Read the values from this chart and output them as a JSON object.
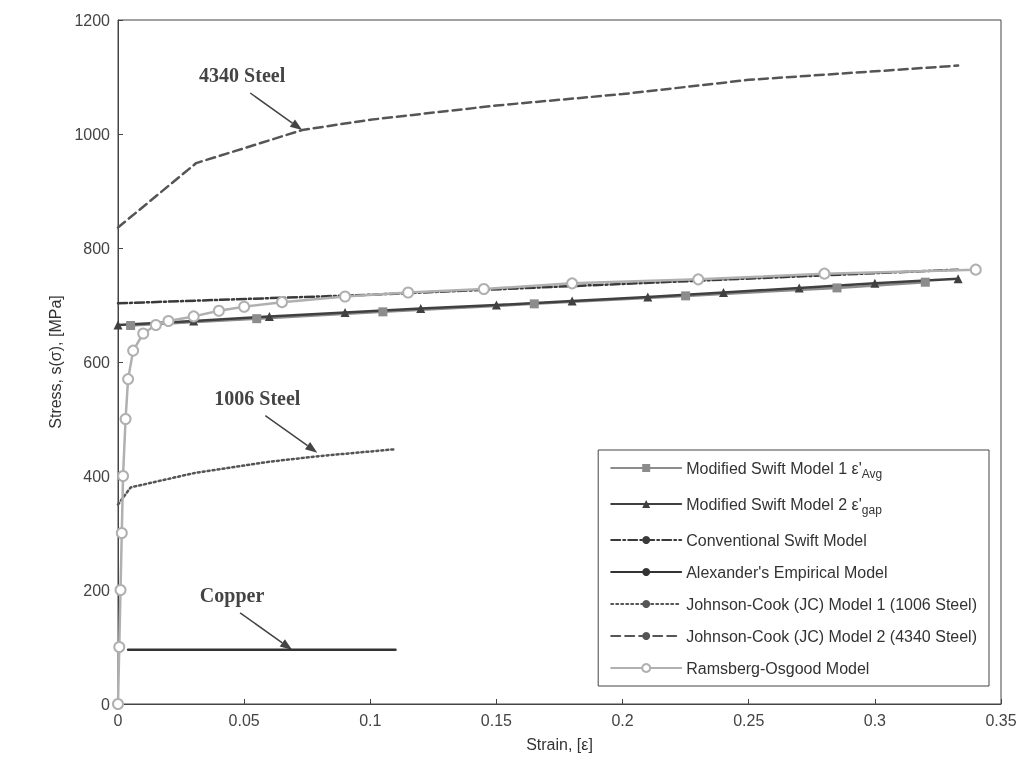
{
  "chart_data": {
    "type": "line",
    "xlabel": "Strain, [ε]",
    "ylabel": "Stress, s(σ), [MPa]",
    "xlim": [
      0,
      0.35
    ],
    "xticks": [
      0,
      0.05,
      0.1,
      0.15,
      0.2,
      0.25,
      0.3,
      0.35
    ],
    "ylim": [
      0,
      1200
    ],
    "yticks": [
      0,
      200,
      400,
      600,
      800,
      1000,
      1200
    ],
    "grid": false,
    "legend": "bottom right",
    "series": [
      {
        "name": "Modified Swift Model 1 ε'$_{Avg}$",
        "color": "#8c8c8c",
        "marker": "square",
        "line_style": "solid",
        "x": [
          0.005,
          0.055,
          0.105,
          0.165,
          0.225,
          0.285,
          0.32
        ],
        "values": [
          664,
          676,
          688,
          702,
          716,
          730,
          740
        ]
      },
      {
        "name": "Modified Swift Model 2 ε'$_{gap}$",
        "color": "#404040",
        "marker": "triangle",
        "line_style": "solid",
        "x": [
          0,
          0.03,
          0.06,
          0.09,
          0.12,
          0.15,
          0.18,
          0.21,
          0.24,
          0.27,
          0.3,
          0.333
        ],
        "values": [
          665,
          672,
          680,
          687,
          694,
          700,
          707,
          714,
          722,
          730,
          738,
          746
        ]
      },
      {
        "name": "Conventional Swift Model",
        "color": "#3a3a3a",
        "marker": "none",
        "line_style": "dashdot",
        "x": [
          0,
          0.1,
          0.2,
          0.333
        ],
        "values": [
          703,
          718,
          737,
          762
        ]
      },
      {
        "name": "Alexander's Empirical Model",
        "color": "#333333",
        "marker": "none",
        "line_style": "solid",
        "x": [
          0.004,
          0.11
        ],
        "values": [
          95,
          95
        ]
      },
      {
        "name": "Johnson-Cook (JC) Model 1 (1006 Steel)",
        "color": "#555555",
        "marker": "none",
        "line_style": "dotted",
        "x": [
          0,
          0.005,
          0.03,
          0.06,
          0.08,
          0.11
        ],
        "values": [
          350,
          380,
          405,
          425,
          435,
          447
        ]
      },
      {
        "name": "Johnson-Cook (JC) Model 2 (4340 Steel)",
        "color": "#555555",
        "marker": "none",
        "line_style": "dashed",
        "x": [
          0,
          0.031,
          0.05,
          0.073,
          0.1,
          0.15,
          0.2,
          0.25,
          0.3,
          0.333
        ],
        "values": [
          836,
          949,
          975,
          1007,
          1025,
          1050,
          1070,
          1095,
          1110,
          1120
        ]
      },
      {
        "name": "Ramsberg-Osgood Model",
        "color": "#b0b0b0",
        "marker": "circle",
        "line_style": "solid",
        "x": [
          0,
          0.0005,
          0.001,
          0.0015,
          0.002,
          0.003,
          0.004,
          0.006,
          0.01,
          0.015,
          0.02,
          0.03,
          0.04,
          0.05,
          0.065,
          0.09,
          0.115,
          0.145,
          0.18,
          0.23,
          0.28,
          0.34
        ],
        "values": [
          0,
          100,
          200,
          300,
          400,
          500,
          570,
          620,
          650,
          665,
          672,
          680,
          690,
          697,
          705,
          715,
          722,
          728,
          738,
          745,
          755,
          762
        ]
      }
    ],
    "annotations": [
      {
        "text": "4340 Steel",
        "x": 0.073,
        "y": 1007
      },
      {
        "text": "1006 Steel",
        "x": 0.079,
        "y": 441
      },
      {
        "text": "Copper",
        "x": 0.069,
        "y": 95
      }
    ]
  }
}
